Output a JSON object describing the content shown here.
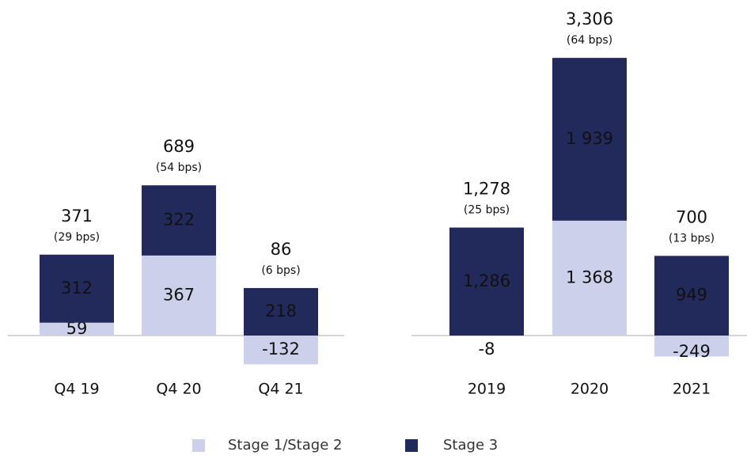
{
  "legend": [
    {
      "name": "Stage 1/Stage 2",
      "color": "#cdd0ea"
    },
    {
      "name": "Stage 3",
      "color": "#222a5c"
    }
  ],
  "chart_data": [
    {
      "type": "stacked-bar",
      "categories": [
        "Q4 19",
        "Q4 20",
        "Q4 21"
      ],
      "series": [
        {
          "values": [
            59,
            367,
            -132
          ]
        },
        {
          "values": [
            312,
            322,
            218
          ]
        }
      ],
      "totals": [
        371,
        689,
        86
      ],
      "totals_value_labels": [
        "371",
        "689",
        "86"
      ],
      "totals_bps": [
        "(29 bps)",
        "(54 bps)",
        "(6 bps)"
      ]
    },
    {
      "type": "stacked-bar",
      "categories": [
        "2019",
        "2020",
        "2021"
      ],
      "series": [
        {
          "values": [
            -8,
            1368,
            -249
          ],
          "value_labels": [
            "-8",
            "1 368",
            "-249"
          ]
        },
        {
          "values": [
            1286,
            1939,
            949
          ],
          "value_labels": [
            "1,286",
            "1 939",
            "949"
          ]
        }
      ],
      "totals": [
        1278,
        3306,
        700
      ],
      "totals_value_labels": [
        "1,278",
        "3,306",
        "700"
      ],
      "totals_bps": [
        "(25 bps)",
        "(64 bps)",
        "(13 bps)"
      ]
    }
  ]
}
